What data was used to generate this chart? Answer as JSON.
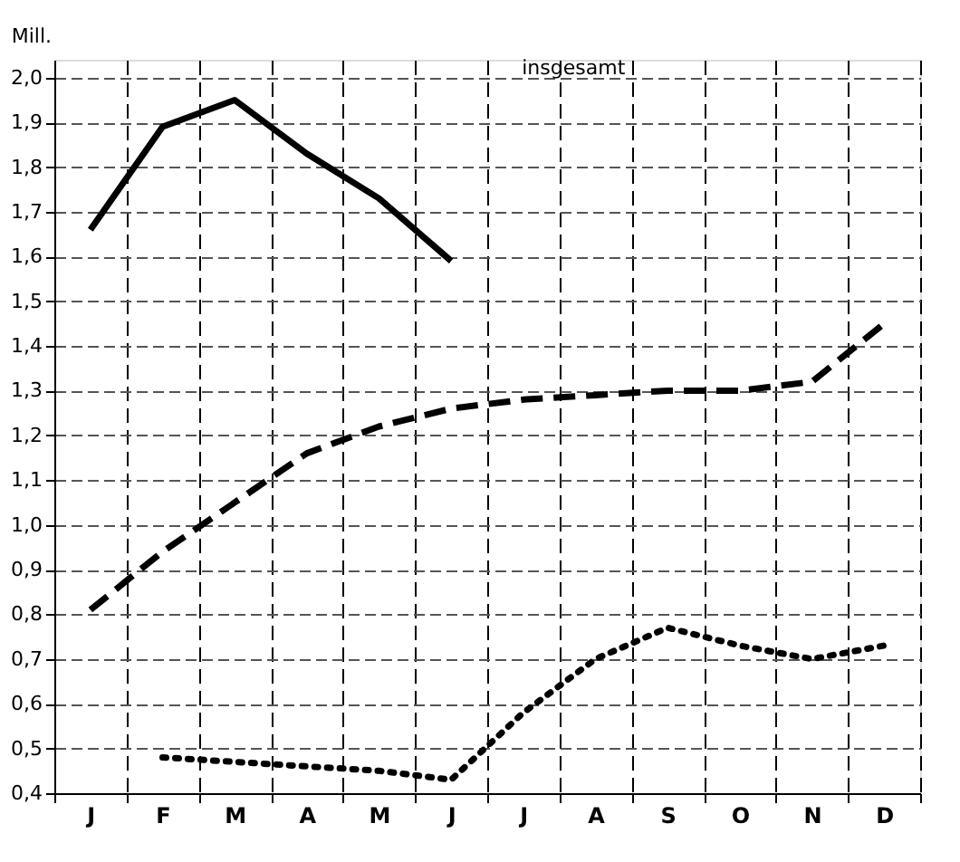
{
  "chart_data": {
    "type": "line",
    "ylabel": "Mill.",
    "annotations": [
      "insgesamt"
    ],
    "categories": [
      "J",
      "F",
      "M",
      "A",
      "M",
      "J",
      "J",
      "A",
      "S",
      "O",
      "N",
      "D"
    ],
    "ylim": [
      0.4,
      2.04
    ],
    "yticks": [
      {
        "value": 0.4,
        "label": "0,4"
      },
      {
        "value": 0.5,
        "label": "0,5"
      },
      {
        "value": 0.6,
        "label": "0,6"
      },
      {
        "value": 0.7,
        "label": "0,7"
      },
      {
        "value": 0.8,
        "label": "0,8"
      },
      {
        "value": 0.9,
        "label": "0,9"
      },
      {
        "value": 1.0,
        "label": "1,0"
      },
      {
        "value": 1.1,
        "label": "1,1"
      },
      {
        "value": 1.2,
        "label": "1,2"
      },
      {
        "value": 1.3,
        "label": "1,3"
      },
      {
        "value": 1.4,
        "label": "1,4"
      },
      {
        "value": 1.5,
        "label": "1,5"
      },
      {
        "value": 1.6,
        "label": "1,6"
      },
      {
        "value": 1.7,
        "label": "1,7"
      },
      {
        "value": 1.8,
        "label": "1,8"
      },
      {
        "value": 1.9,
        "label": "1,9"
      },
      {
        "value": 2.0,
        "label": "2,0"
      }
    ],
    "grid": true,
    "marker": "none",
    "series": [
      {
        "color": "#000000",
        "line_style": "solid",
        "values": [
          1.66,
          1.89,
          1.95,
          1.83,
          1.73,
          1.59,
          null,
          null,
          null,
          null,
          null,
          null
        ]
      },
      {
        "color": "#000000",
        "line_style": "dashed",
        "values": [
          0.81,
          0.94,
          1.05,
          1.16,
          1.22,
          1.26,
          1.28,
          1.29,
          1.3,
          1.3,
          1.32,
          1.45
        ]
      },
      {
        "color": "#000000",
        "line_style": "dotted",
        "values": [
          null,
          0.48,
          0.47,
          0.46,
          0.45,
          0.43,
          0.58,
          0.7,
          0.77,
          0.73,
          0.7,
          0.73
        ]
      }
    ]
  }
}
